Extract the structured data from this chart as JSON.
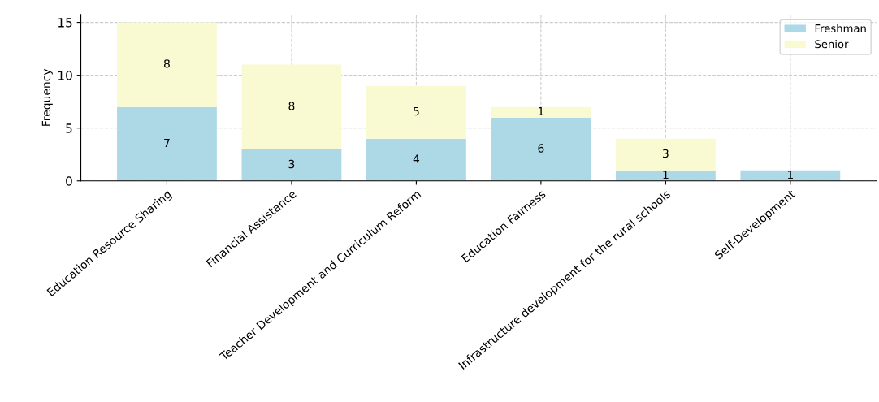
{
  "chart_data": {
    "type": "bar",
    "stacked": true,
    "ylabel": "Frequency",
    "categories": [
      "Education Resource Sharing",
      "Financial Assistance",
      "Teacher Development and Curriculum Reform",
      "Education Fairness",
      "Infrastructure development for the rural schools",
      "Self-Development"
    ],
    "series": [
      {
        "name": "Freshman",
        "color": "#add8e6",
        "values": [
          7,
          3,
          4,
          6,
          1,
          1
        ],
        "value_labels": [
          "7",
          "3",
          "4",
          "6",
          "1",
          "1"
        ]
      },
      {
        "name": "Senior",
        "color": "#fafad2",
        "values": [
          8,
          8,
          5,
          1,
          3,
          0
        ],
        "value_labels": [
          "8",
          "8",
          "5",
          "1",
          "3",
          null
        ]
      }
    ],
    "ylim": [
      0,
      15.75
    ],
    "yticks": [
      0,
      5,
      10,
      15
    ],
    "grid": true,
    "legend": "top right"
  }
}
